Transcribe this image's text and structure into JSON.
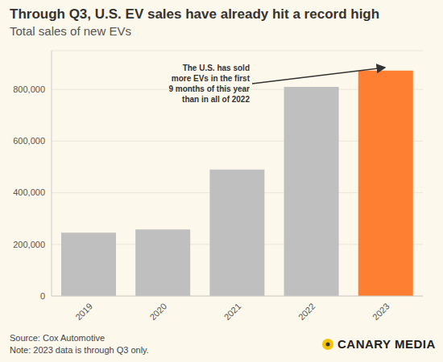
{
  "chart_data": {
    "type": "bar",
    "title": "Through Q3, U.S. EV sales have already hit a record high",
    "subtitle": "Total sales of new EVs",
    "categories": [
      "2019",
      "2020",
      "2021",
      "2022",
      "2023"
    ],
    "values": [
      245000,
      258000,
      490000,
      810000,
      873000
    ],
    "colors": [
      "#bfbfbf",
      "#bfbfbf",
      "#bfbfbf",
      "#bfbfbf",
      "#ff7f32"
    ],
    "ylim": [
      0,
      950000
    ],
    "yticks": [
      0,
      {
        "value": 200000,
        "label": "200,000"
      },
      {
        "value": 400000,
        "label": "400,000"
      },
      {
        "value": 600000,
        "label": "600,000"
      },
      {
        "value": 800000,
        "label": "800,000"
      }
    ],
    "grid": true,
    "annotation": "The U.S. has sold more EVs in the first 9 months of this year than in all of 2022",
    "source": "Source: Cox Automotive",
    "note": "Note: 2023 data is through Q3 only.",
    "logo_text": "CANARY MEDIA"
  }
}
